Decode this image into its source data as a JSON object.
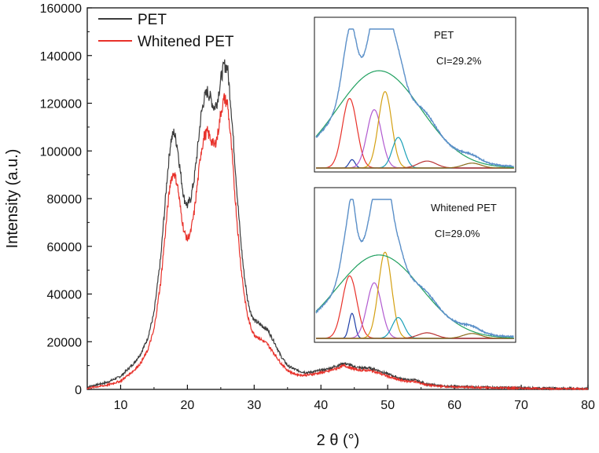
{
  "chart_data": {
    "type": "line",
    "title": "",
    "xlabel": "2 θ (°)",
    "ylabel": "Intensity (a.u.)",
    "xlim": [
      5,
      80
    ],
    "ylim": [
      0,
      160000
    ],
    "xticks": [
      10,
      20,
      30,
      40,
      50,
      60,
      70,
      80
    ],
    "yticks": [
      0,
      20000,
      40000,
      60000,
      80000,
      100000,
      120000,
      140000,
      160000
    ],
    "xtick_labels": [
      "10",
      "20",
      "30",
      "40",
      "50",
      "60",
      "70",
      "80"
    ],
    "ytick_labels": [
      "0",
      "20000",
      "40000",
      "60000",
      "80000",
      "100000",
      "120000",
      "140000",
      "160000"
    ],
    "legend_position": "top-left",
    "series": [
      {
        "name": "PET",
        "color": "#3c3c3c",
        "x": [
          5,
          8,
          10,
          12,
          13,
          14,
          15,
          16,
          17,
          17.5,
          18,
          18.5,
          19,
          19.5,
          20,
          20.5,
          21,
          21.5,
          22,
          22.5,
          23,
          23.5,
          24,
          24.5,
          25,
          25.5,
          26,
          26.5,
          27,
          27.5,
          28,
          28.5,
          29,
          29.5,
          30,
          31,
          32,
          33,
          34,
          35,
          36,
          37,
          38,
          39,
          40,
          41,
          42,
          43,
          43.5,
          44,
          45,
          46,
          47,
          48,
          49,
          50,
          51,
          52,
          53,
          54,
          55,
          56,
          57,
          58,
          59,
          60,
          62,
          65,
          70,
          75,
          80
        ],
        "values": [
          1000,
          3000,
          5500,
          11000,
          15000,
          21000,
          32000,
          55000,
          90000,
          104000,
          108000,
          102000,
          90000,
          80000,
          77000,
          80000,
          88000,
          100000,
          114000,
          122000,
          125000,
          122000,
          118000,
          121000,
          130000,
          136000,
          135000,
          120000,
          100000,
          80000,
          62000,
          48000,
          38000,
          32000,
          29000,
          27000,
          25000,
          20000,
          14000,
          10000,
          8500,
          7500,
          7000,
          7500,
          8000,
          8500,
          9500,
          10500,
          11000,
          10500,
          9500,
          9000,
          9000,
          8500,
          7500,
          6500,
          5500,
          4500,
          4000,
          4000,
          3000,
          2000,
          1800,
          1500,
          1300,
          1200,
          1100,
          900,
          700,
          500,
          300
        ]
      },
      {
        "name": "Whitened PET",
        "color": "#e8312a",
        "x": [
          5,
          8,
          10,
          12,
          13,
          14,
          15,
          16,
          17,
          17.5,
          18,
          18.5,
          19,
          19.5,
          20,
          20.5,
          21,
          21.5,
          22,
          22.5,
          23,
          23.5,
          24,
          24.5,
          25,
          25.5,
          26,
          26.5,
          27,
          27.5,
          28,
          28.5,
          29,
          29.5,
          30,
          31,
          32,
          33,
          34,
          35,
          36,
          37,
          38,
          39,
          40,
          41,
          42,
          43,
          43.5,
          44,
          45,
          46,
          47,
          48,
          49,
          50,
          51,
          52,
          53,
          54,
          55,
          56,
          57,
          58,
          59,
          60,
          62,
          65,
          70,
          75,
          80
        ],
        "values": [
          500,
          1800,
          3500,
          8000,
          11000,
          16000,
          25000,
          45000,
          75000,
          88000,
          91000,
          86000,
          75000,
          66000,
          63000,
          66000,
          74000,
          86000,
          99000,
          106000,
          108000,
          105000,
          102000,
          106000,
          116000,
          122000,
          120000,
          105000,
          86000,
          68000,
          52000,
          40000,
          31000,
          26000,
          23000,
          21000,
          19000,
          15000,
          11000,
          8000,
          6500,
          6000,
          6000,
          6500,
          7000,
          7500,
          8500,
          9500,
          10000,
          9500,
          8500,
          8000,
          8000,
          7500,
          6500,
          5500,
          4500,
          3800,
          3400,
          3300,
          2500,
          1800,
          1500,
          1300,
          1100,
          1000,
          900,
          700,
          500,
          300,
          200
        ]
      }
    ],
    "insets": [
      {
        "label": "PET",
        "annotation": "CI=29.2%",
        "peaks": [
          {
            "name": "red",
            "color": "#e8312a",
            "center": 17.6,
            "height": 0.5,
            "width": 1.2
          },
          {
            "name": "navy",
            "color": "#1f3fa8",
            "center": 18.0,
            "height": 0.06,
            "width": 0.5
          },
          {
            "name": "purple",
            "color": "#b15ad0",
            "center": 21.7,
            "height": 0.42,
            "width": 1.2
          },
          {
            "name": "orange",
            "color": "#d4a012",
            "center": 23.5,
            "height": 0.55,
            "width": 1.1
          },
          {
            "name": "teal",
            "color": "#1aa0b8",
            "center": 25.7,
            "height": 0.22,
            "width": 1.0
          },
          {
            "name": "darkred",
            "color": "#b83030",
            "center": 30.5,
            "height": 0.05,
            "width": 1.5
          },
          {
            "name": "brown",
            "color": "#8a6a1a",
            "center": 38,
            "height": 0.035,
            "width": 1.5
          },
          {
            "name": "green",
            "color": "#20a060",
            "center": 22.5,
            "height": 0.7,
            "width": 7.0
          }
        ]
      },
      {
        "label": "Whitened PET",
        "annotation": "CI=29.0%",
        "peaks": [
          {
            "name": "red",
            "color": "#e8312a",
            "center": 17.6,
            "height": 0.45,
            "width": 1.2
          },
          {
            "name": "navy",
            "color": "#1f3fa8",
            "center": 18.0,
            "height": 0.18,
            "width": 0.5
          },
          {
            "name": "purple",
            "color": "#b15ad0",
            "center": 21.7,
            "height": 0.4,
            "width": 1.2
          },
          {
            "name": "orange",
            "color": "#d4a012",
            "center": 23.5,
            "height": 0.62,
            "width": 1.1
          },
          {
            "name": "teal",
            "color": "#1aa0b8",
            "center": 25.7,
            "height": 0.15,
            "width": 1.0
          },
          {
            "name": "darkred",
            "color": "#b83030",
            "center": 30.5,
            "height": 0.04,
            "width": 1.5
          },
          {
            "name": "brown",
            "color": "#8a6a1a",
            "center": 38,
            "height": 0.035,
            "width": 1.5
          },
          {
            "name": "green",
            "color": "#20a060",
            "center": 22.5,
            "height": 0.6,
            "width": 7.0
          }
        ]
      }
    ]
  },
  "colors": {
    "axis": "#111111",
    "fit_total": "#5a8fc8"
  }
}
